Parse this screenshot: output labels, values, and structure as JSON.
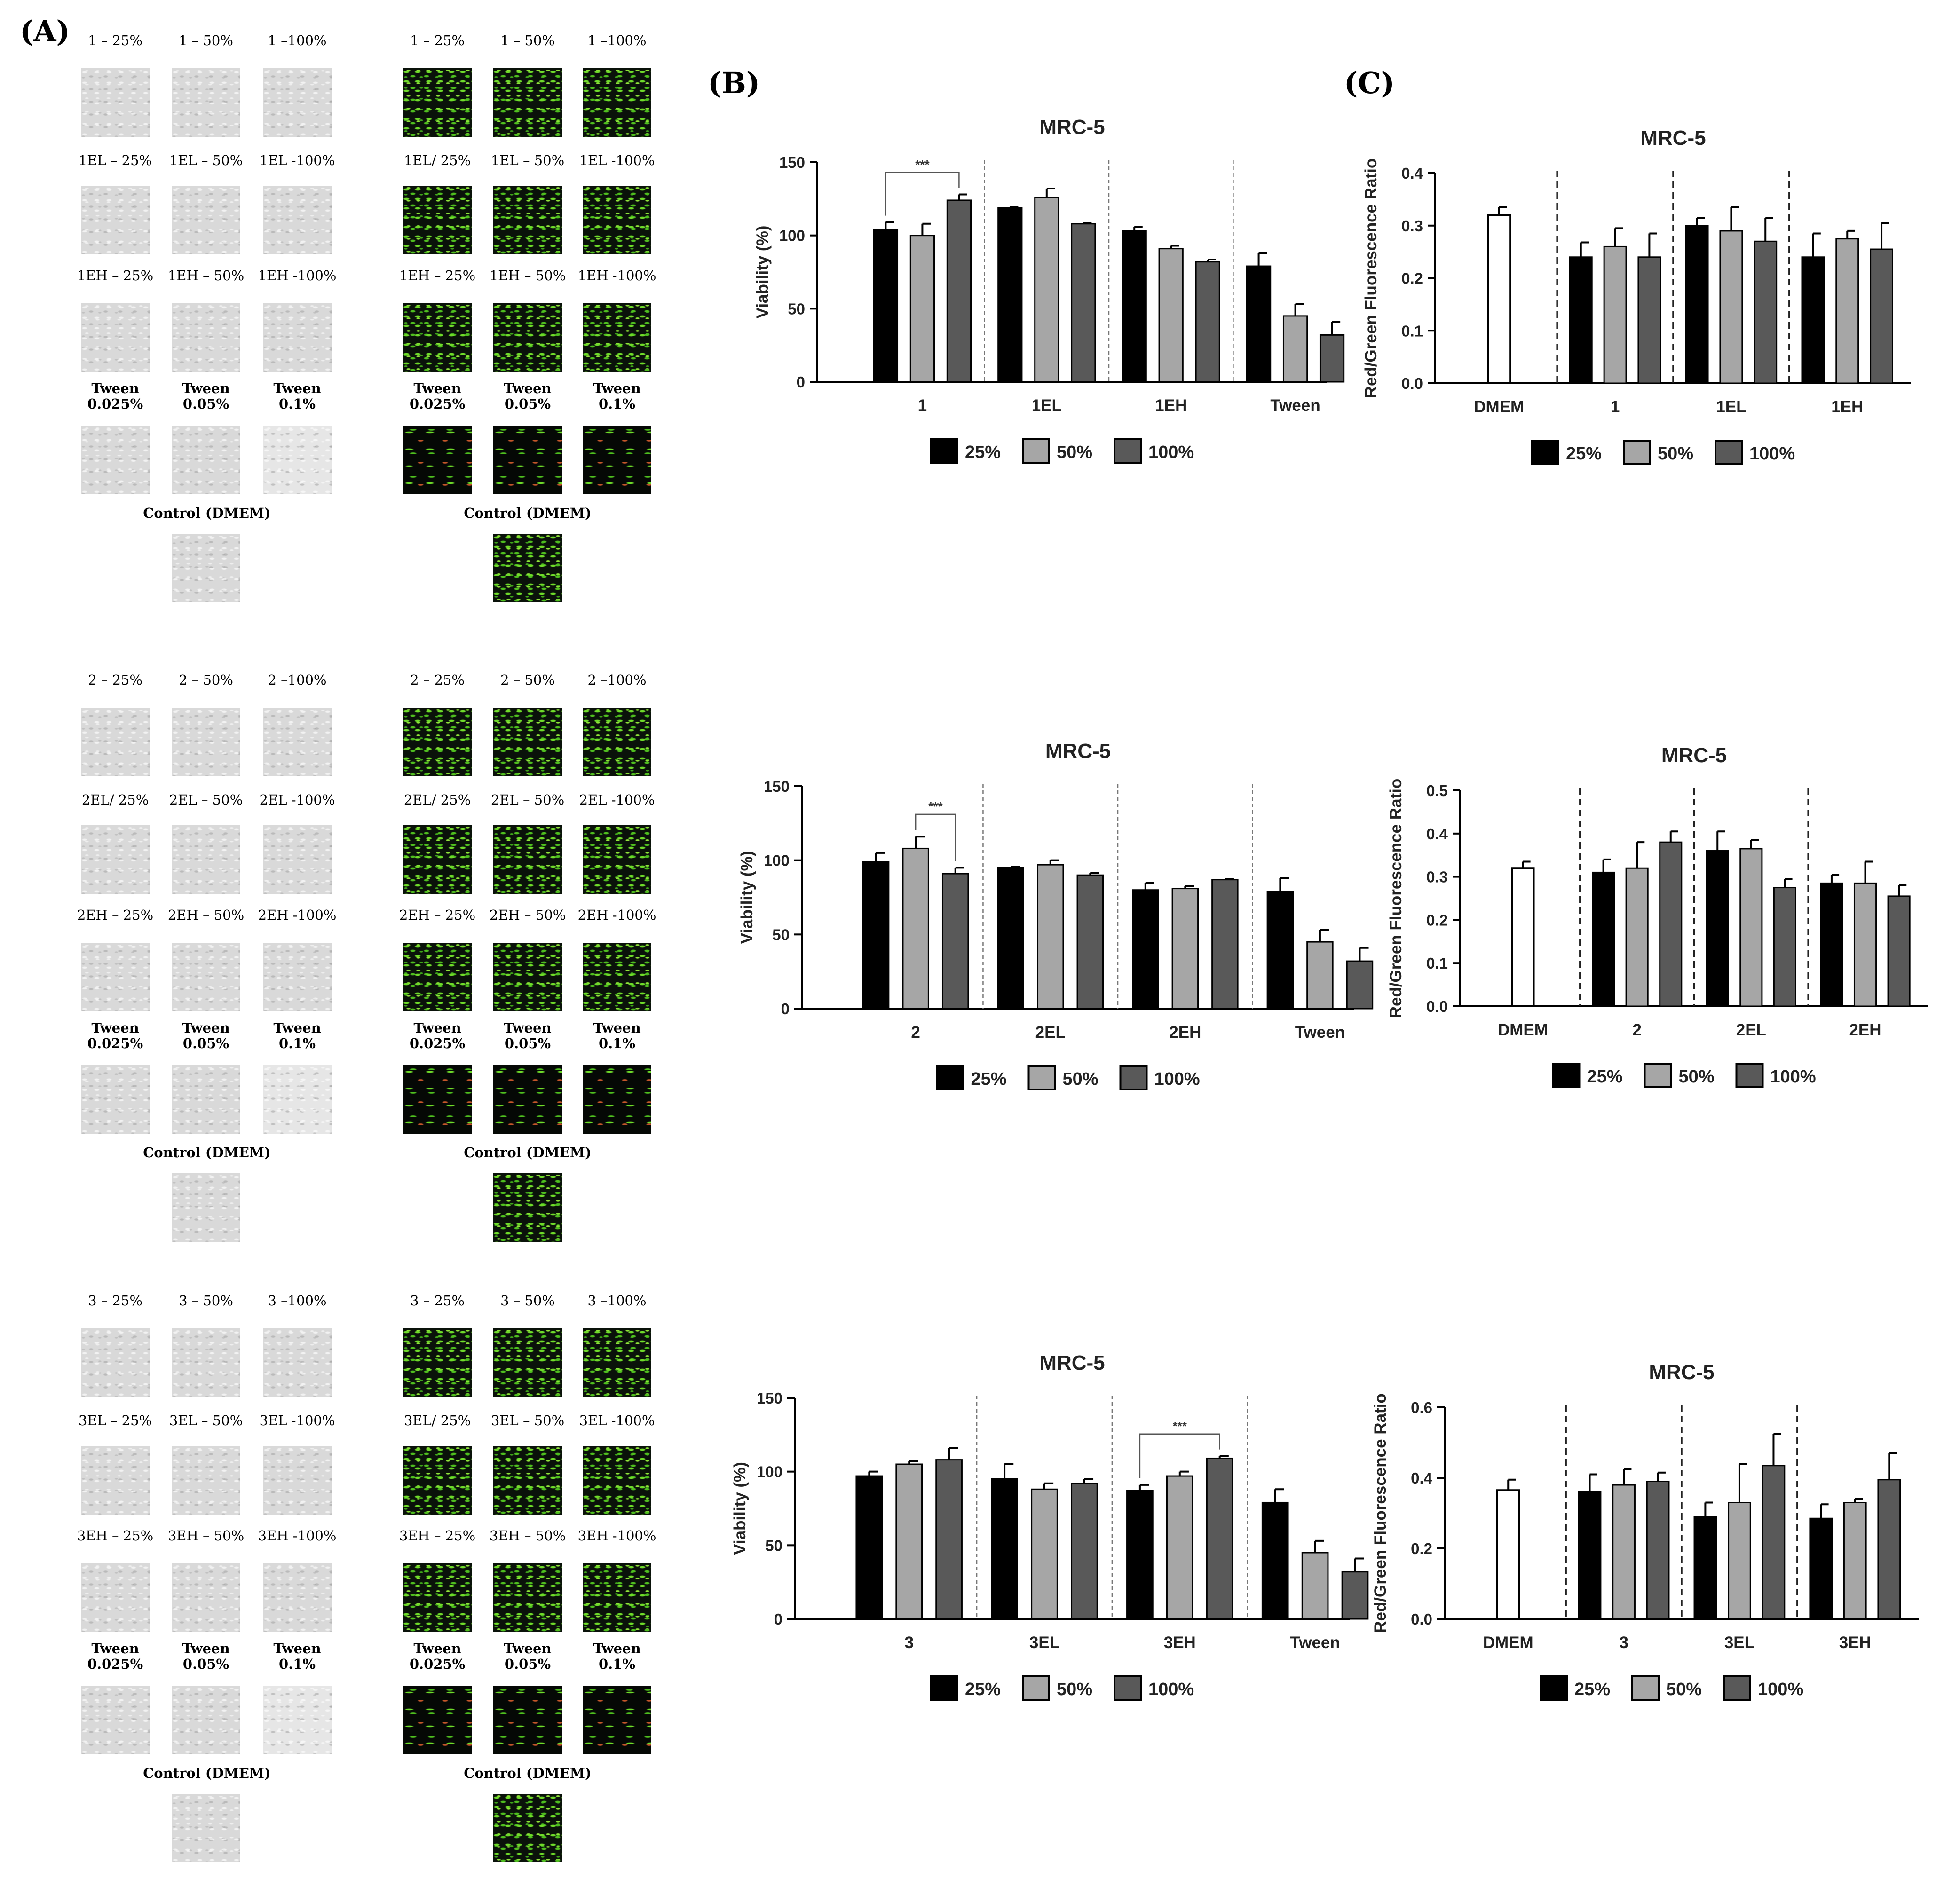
{
  "panels": {
    "a": "(A)",
    "b": "(B)",
    "c": "(C)"
  },
  "micrographs": {
    "groups": [
      {
        "rows": [
          [
            "1 – 25%",
            "1 – 50%",
            "1 –100%"
          ],
          [
            "1EL – 25%",
            "1EL – 50%",
            "1EL -100%"
          ],
          [
            "1EH – 25%",
            "1EH – 50%",
            "1EH -100%"
          ],
          [
            "Tween\n0.025%",
            "Tween\n0.05%",
            "Tween\n0.1%"
          ]
        ],
        "fluo_rows": [
          [
            "1 – 25%",
            "1 – 50%",
            "1 –100%"
          ],
          [
            "1EL/ 25%",
            "1EL – 50%",
            "1EL -100%"
          ],
          [
            "1EH – 25%",
            "1EH – 50%",
            "1EH -100%"
          ],
          [
            "Tween\n0.025%",
            "Tween\n0.05%",
            "Tween\n0.1%"
          ]
        ],
        "control": "Control (DMEM)"
      },
      {
        "rows": [
          [
            "2 – 25%",
            "2 – 50%",
            "2 –100%"
          ],
          [
            "2EL/ 25%",
            "2EL – 50%",
            "2EL -100%"
          ],
          [
            "2EH – 25%",
            "2EH – 50%",
            "2EH -100%"
          ],
          [
            "Tween\n0.025%",
            "Tween\n0.05%",
            "Tween\n0.1%"
          ]
        ],
        "fluo_rows": [
          [
            "2 – 25%",
            "2 – 50%",
            "2 –100%"
          ],
          [
            "2EL/ 25%",
            "2EL – 50%",
            "2EL -100%"
          ],
          [
            "2EH – 25%",
            "2EH – 50%",
            "2EH -100%"
          ],
          [
            "Tween\n0.025%",
            "Tween\n0.05%",
            "Tween\n0.1%"
          ]
        ],
        "control": "Control (DMEM)"
      },
      {
        "rows": [
          [
            "3 – 25%",
            "3 – 50%",
            "3 –100%"
          ],
          [
            "3EL – 25%",
            "3EL – 50%",
            "3EL -100%"
          ],
          [
            "3EH – 25%",
            "3EH – 50%",
            "3EH -100%"
          ],
          [
            "Tween\n0.025%",
            "Tween\n0.05%",
            "Tween\n0.1%"
          ]
        ],
        "fluo_rows": [
          [
            "3 – 25%",
            "3 – 50%",
            "3 –100%"
          ],
          [
            "3EL/ 25%",
            "3EL – 50%",
            "3EL -100%"
          ],
          [
            "3EH – 25%",
            "3EH – 50%",
            "3EH -100%"
          ],
          [
            "Tween\n0.025%",
            "Tween\n0.05%",
            "Tween\n0.1%"
          ]
        ],
        "control": "Control (DMEM)"
      }
    ]
  },
  "colors": {
    "bar_25": "#000000",
    "bar_50": "#a6a6a6",
    "bar_100": "#595959",
    "bar_dmem": "#ffffff",
    "axis": "#000000"
  },
  "chart_data": [
    {
      "type": "bar",
      "panel": "B",
      "title": "MRC-5",
      "ylabel": "Viability (%)",
      "xlabel": "",
      "ylim": [
        0,
        150
      ],
      "yticks": [
        0,
        50,
        100,
        150
      ],
      "groups": [
        "1",
        "1EL",
        "1EH",
        "Tween"
      ],
      "series": [
        {
          "name": "25%",
          "values": [
            104,
            119,
            103,
            79
          ],
          "errors": [
            5,
            0.5,
            3,
            9
          ]
        },
        {
          "name": "50%",
          "values": [
            100,
            126,
            91,
            45
          ],
          "errors": [
            8,
            6,
            2,
            8
          ]
        },
        {
          "name": "100%",
          "values": [
            124,
            108,
            82,
            32
          ],
          "errors": [
            4,
            0.5,
            1.5,
            9
          ]
        }
      ],
      "significance": [
        {
          "from_group": 0,
          "from_series": 0,
          "to_group": 0,
          "to_series": 2,
          "label": "***"
        }
      ],
      "grid": false,
      "legend": "bottom"
    },
    {
      "type": "bar",
      "panel": "C",
      "title": "MRC-5",
      "ylabel": "Red/Green Fluorescence Ratio",
      "xlabel": "",
      "ylim": [
        0,
        0.4
      ],
      "yticks": [
        0.0,
        0.1,
        0.2,
        0.3,
        0.4
      ],
      "control": {
        "label": "DMEM",
        "value": 0.32,
        "error": 0.015
      },
      "groups": [
        "1",
        "1EL",
        "1EH"
      ],
      "series": [
        {
          "name": "25%",
          "values": [
            0.24,
            0.3,
            0.24
          ],
          "errors": [
            0.028,
            0.015,
            0.045
          ]
        },
        {
          "name": "50%",
          "values": [
            0.26,
            0.29,
            0.275
          ],
          "errors": [
            0.035,
            0.045,
            0.015
          ]
        },
        {
          "name": "100%",
          "values": [
            0.24,
            0.27,
            0.255
          ],
          "errors": [
            0.045,
            0.045,
            0.05
          ]
        }
      ],
      "grid": false,
      "legend": "bottom"
    },
    {
      "type": "bar",
      "panel": "B",
      "title": "MRC-5",
      "ylabel": "Viability (%)",
      "xlabel": "",
      "ylim": [
        0,
        150
      ],
      "yticks": [
        0,
        50,
        100,
        150
      ],
      "groups": [
        "2",
        "2EL",
        "2EH",
        "Tween"
      ],
      "series": [
        {
          "name": "25%",
          "values": [
            99,
            95,
            80,
            79
          ],
          "errors": [
            6,
            0.5,
            5,
            9
          ]
        },
        {
          "name": "50%",
          "values": [
            108,
            97,
            81,
            45
          ],
          "errors": [
            8,
            3,
            1.5,
            8
          ]
        },
        {
          "name": "100%",
          "values": [
            91,
            90,
            87,
            32
          ],
          "errors": [
            4,
            1.5,
            0.5,
            9
          ]
        }
      ],
      "significance": [
        {
          "from_group": 0,
          "from_series": 1,
          "to_group": 0,
          "to_series": 2,
          "label": "***"
        }
      ],
      "grid": false,
      "legend": "bottom"
    },
    {
      "type": "bar",
      "panel": "C",
      "title": "MRC-5",
      "ylabel": "Red/Green Fluorescence Ratio",
      "xlabel": "",
      "ylim": [
        0,
        0.5
      ],
      "yticks": [
        0.0,
        0.1,
        0.2,
        0.3,
        0.4,
        0.5
      ],
      "control": {
        "label": "DMEM",
        "value": 0.32,
        "error": 0.015
      },
      "groups": [
        "2",
        "2EL",
        "2EH"
      ],
      "series": [
        {
          "name": "25%",
          "values": [
            0.31,
            0.36,
            0.285
          ],
          "errors": [
            0.03,
            0.045,
            0.02
          ]
        },
        {
          "name": "50%",
          "values": [
            0.32,
            0.365,
            0.285
          ],
          "errors": [
            0.06,
            0.02,
            0.05
          ]
        },
        {
          "name": "100%",
          "values": [
            0.38,
            0.275,
            0.255
          ],
          "errors": [
            0.025,
            0.02,
            0.025
          ]
        }
      ],
      "grid": false,
      "legend": "bottom"
    },
    {
      "type": "bar",
      "panel": "B",
      "title": "MRC-5",
      "ylabel": "Viability (%)",
      "xlabel": "",
      "ylim": [
        0,
        150
      ],
      "yticks": [
        0,
        50,
        100,
        150
      ],
      "groups": [
        "3",
        "3EL",
        "3EH",
        "Tween"
      ],
      "series": [
        {
          "name": "25%",
          "values": [
            97,
            95,
            87,
            79
          ],
          "errors": [
            3,
            10,
            4,
            9
          ]
        },
        {
          "name": "50%",
          "values": [
            105,
            88,
            97,
            45
          ],
          "errors": [
            2,
            4,
            3,
            8
          ]
        },
        {
          "name": "100%",
          "values": [
            108,
            92,
            109,
            32
          ],
          "errors": [
            8,
            3,
            1.5,
            9
          ]
        }
      ],
      "significance": [
        {
          "from_group": 2,
          "from_series": 0,
          "to_group": 2,
          "to_series": 2,
          "label": "***"
        }
      ],
      "grid": false,
      "legend": "bottom"
    },
    {
      "type": "bar",
      "panel": "C",
      "title": "MRC-5",
      "ylabel": "Red/Green Fluorescence Ratio",
      "xlabel": "",
      "ylim": [
        0,
        0.6
      ],
      "yticks": [
        0.0,
        0.2,
        0.4,
        0.6
      ],
      "control": {
        "label": "DMEM",
        "value": 0.365,
        "error": 0.03
      },
      "groups": [
        "3",
        "3EL",
        "3EH"
      ],
      "series": [
        {
          "name": "25%",
          "values": [
            0.36,
            0.29,
            0.285
          ],
          "errors": [
            0.05,
            0.04,
            0.04
          ]
        },
        {
          "name": "50%",
          "values": [
            0.38,
            0.33,
            0.33
          ],
          "errors": [
            0.045,
            0.11,
            0.01
          ]
        },
        {
          "name": "100%",
          "values": [
            0.39,
            0.435,
            0.395
          ],
          "errors": [
            0.025,
            0.09,
            0.075
          ]
        }
      ],
      "grid": false,
      "legend": "bottom"
    }
  ]
}
